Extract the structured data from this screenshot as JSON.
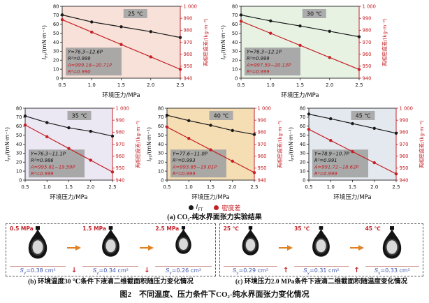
{
  "colors": {
    "series_black": "#1a1a1a",
    "series_red": "#c42127",
    "area_label_blue": "#3b55a6",
    "arrow_orange": "#e08224",
    "eq_box_gray": "#a3a3a3",
    "temp_box_gray": "#a8a8a8"
  },
  "chart_data": {
    "type": "line",
    "x": [
      0.5,
      1.0,
      1.5,
      2.0,
      2.5
    ],
    "xlabel": "环境压力/MPa",
    "ylabel_left": {
      "base": "I",
      "sub": "FT",
      "unit": "/(mN·m⁻¹)"
    },
    "ylabel_right": "两相密度差/(kg·m⁻³)",
    "ylim_left": [
      0,
      80
    ],
    "ylim_right": [
      940,
      1000
    ],
    "xticks": [
      "0.5",
      "1.0",
      "1.5",
      "2.0",
      "2.5"
    ],
    "yticks_left": [
      "0",
      "10",
      "20",
      "30",
      "40",
      "50",
      "60",
      "70",
      "80"
    ],
    "yticks_right": [
      "940",
      "950",
      "960",
      "970",
      "980",
      "990",
      "1 000"
    ],
    "grid": false,
    "legend_position": "bottom-center",
    "charts": [
      {
        "temperature_label": "25 ℃",
        "bg": "#f8e1d8",
        "series": [
          {
            "name": "IFT",
            "axis": "left",
            "color": "#1a1a1a",
            "values": [
              70.4,
              62.6,
              57.2,
              51.8,
              45.3
            ],
            "fit_label": "Y=76.3−12.6P",
            "r2_label": "R²=0.999"
          },
          {
            "name": "密度差",
            "axis": "right",
            "color": "#c42127",
            "values": [
              988.8,
              978.5,
              968.1,
              957.8,
              947.4
            ],
            "fit_label": "A=999.18−20.71P",
            "r2_label": "R²=0.990"
          }
        ]
      },
      {
        "temperature_label": "30 ℃",
        "bg": "#e7f2e3",
        "series": [
          {
            "name": "IFT",
            "axis": "left",
            "color": "#1a1a1a",
            "values": [
              70.3,
              63.7,
              58.1,
              52.2,
              46.1
            ],
            "fit_label": "Y=76.3−12.1P",
            "r2_label": "R²=0.999"
          },
          {
            "name": "密度差",
            "axis": "right",
            "color": "#c42127",
            "values": [
              987.5,
              977.5,
              967.4,
              957.3,
              947.3
            ],
            "fit_label": "A=997.59−20.13P",
            "r2_label": "R²=0.999"
          }
        ]
      },
      {
        "temperature_label": "35 ℃",
        "bg": "#ebe7f3",
        "series": [
          {
            "name": "IFT",
            "axis": "left",
            "color": "#1a1a1a",
            "values": [
              71.3,
              64.0,
              58.2,
              54.3,
              49.0
            ],
            "fit_label": "Y=76.3−11.1P",
            "r2_label": "R²=0.986"
          },
          {
            "name": "密度差",
            "axis": "right",
            "color": "#c42127",
            "values": [
              986.0,
              976.2,
              966.4,
              956.6,
              946.8
            ],
            "fit_label": "A=995.81−19.59P",
            "r2_label": "R²=0.999"
          }
        ]
      },
      {
        "temperature_label": "40 ℃",
        "bg": "#f5ddb4",
        "series": [
          {
            "name": "IFT",
            "axis": "left",
            "color": "#1a1a1a",
            "values": [
              72.2,
              66.2,
              61.0,
              55.2,
              50.8
            ],
            "fit_label": "Y=77.6−11.0P",
            "r2_label": "R²=0.993"
          },
          {
            "name": "密度差",
            "axis": "right",
            "color": "#c42127",
            "values": [
              984.3,
              974.8,
              965.3,
              955.8,
              946.3
            ],
            "fit_label": "A=993.85−19.01P",
            "r2_label": "R²=0.999"
          }
        ]
      },
      {
        "temperature_label": "45 ℃",
        "bg": "#e4e9ef",
        "series": [
          {
            "name": "IFT",
            "axis": "left",
            "color": "#1a1a1a",
            "values": [
              73.4,
              68.3,
              62.9,
              57.6,
              52.2
            ],
            "fit_label": "Y=78.9−10.7P",
            "r2_label": "R²=0.991"
          },
          {
            "name": "密度差",
            "axis": "right",
            "color": "#c42127",
            "values": [
              982.4,
              973.1,
              963.8,
              954.5,
              945.2
            ],
            "fit_label": "A=991.72−18.62P",
            "r2_label": "R²=0.999"
          }
        ]
      }
    ]
  },
  "legend": {
    "ift_base": "I",
    "ift_sub": "FT",
    "density_label": "密度差"
  },
  "captions": {
    "a": "(a) CO₂-纯水界面张力实验结果",
    "figure": "图2　不同温度、压力条件下CO₂-纯水界面张力变化情况"
  },
  "panels": {
    "b": {
      "caption": "(b) 环境温度30 ℃条件下液滴二维截面积随压力变化情况",
      "trend_symbol": "↓",
      "droplets": [
        {
          "condition_label": "0.5 MPa",
          "s_base": "S",
          "s_sub": "y",
          "area_value": "=0.38 cm²"
        },
        {
          "condition_label": "1.5 MPa",
          "s_base": "S",
          "s_sub": "y",
          "area_value": "=0.34 cm²"
        },
        {
          "condition_label": "2.5 MPa",
          "s_base": "S",
          "s_sub": "y",
          "area_value": "=0.26 cm²"
        }
      ]
    },
    "c": {
      "caption": "(c) 环境压力2.0 MPa条件下液滴二维截面积随温度变化情况",
      "trend_symbol": "↑",
      "droplets": [
        {
          "condition_label": "25 ℃",
          "s_base": "S",
          "s_sub": "y",
          "area_value": "=0.29 cm²"
        },
        {
          "condition_label": "35 ℃",
          "s_base": "S",
          "s_sub": "y",
          "area_value": "=0.31 cm²"
        },
        {
          "condition_label": "45 ℃",
          "s_base": "S",
          "s_sub": "y",
          "area_value": "=0.33 cm²"
        }
      ]
    }
  }
}
